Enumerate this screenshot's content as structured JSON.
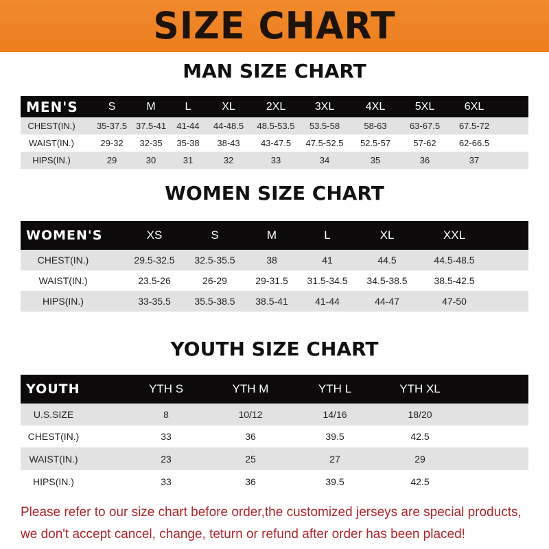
{
  "banner": {
    "title": "SIZE CHART",
    "color": "#ef8426"
  },
  "men": {
    "title": "MAN SIZE CHART",
    "header": [
      "MEN'S",
      "S",
      "M",
      "L",
      "XL",
      "2XL",
      "3XL",
      "4XL",
      "5XL",
      "6XL"
    ],
    "rows": [
      [
        "CHEST(IN.)",
        "35-37.5",
        "37.5-41",
        "41-44",
        "44-48.5",
        "48.5-53.5",
        "53.5-58",
        "58-63",
        "63-67.5",
        "67.5-72"
      ],
      [
        "WAIST(IN.)",
        "29-32",
        "32-35",
        "35-38",
        "38-43",
        "43-47.5",
        "47.5-52.5",
        "52.5-57",
        "57-62",
        "62-66.5"
      ],
      [
        "HIPS(IN.)",
        "29",
        "30",
        "31",
        "32",
        "33",
        "34",
        "35",
        "36",
        "37"
      ]
    ]
  },
  "women": {
    "title": "WOMEN SIZE CHART",
    "header": [
      "WOMEN'S",
      "XS",
      "S",
      "M",
      "L",
      "XL",
      "XXL"
    ],
    "rows": [
      [
        "CHEST(IN.)",
        "29.5-32.5",
        "32.5-35.5",
        "38",
        "41",
        "44.5",
        "44.5-48.5"
      ],
      [
        "WAIST(IN.)",
        "23.5-26",
        "26-29",
        "29-31.5",
        "31.5-34.5",
        "34.5-38.5",
        "38.5-42.5"
      ],
      [
        "HIPS(IN.)",
        "33-35.5",
        "35.5-38.5",
        "38.5-41",
        "41-44",
        "44-47",
        "47-50"
      ]
    ]
  },
  "youth": {
    "title": "YOUTH SIZE CHART",
    "header": [
      "YOUTH",
      "YTH S",
      "YTH M",
      "YTH L",
      "YTH XL"
    ],
    "rows": [
      [
        "U.S.SIZE",
        "8",
        "10/12",
        "14/16",
        "18/20"
      ],
      [
        "CHEST(IN.)",
        "33",
        "36",
        "39.5",
        "42.5"
      ],
      [
        "WAIST(IN.)",
        "23",
        "25",
        "27",
        "29"
      ],
      [
        "HIPS(IN.)",
        "33",
        "36",
        "39.5",
        "42.5"
      ]
    ]
  },
  "footer": {
    "line1": "Please refer to our size chart before order,the customized jerseys are special products,",
    "line2": "we don't accept cancel, change, teturn or refund after order has been placed!",
    "color": "#b0262b"
  }
}
